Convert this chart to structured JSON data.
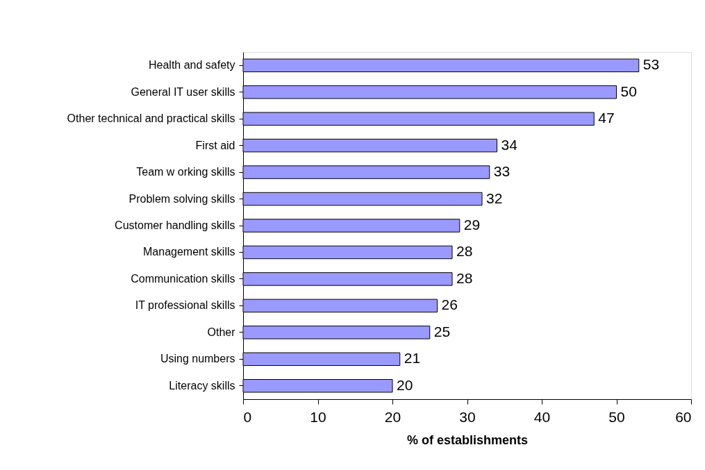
{
  "chart_data": {
    "type": "bar",
    "orientation": "horizontal",
    "xlabel": "% of establishments",
    "categories": [
      "Health and safety",
      "General IT user skills",
      "Other technical and practical skills",
      "First aid",
      "Team w orking skills",
      "Problem solving skills",
      "Customer handling skills",
      "Management skills",
      "Communication skills",
      "IT professional skills",
      "Other",
      "Using numbers",
      "Literacy skills"
    ],
    "values": [
      53,
      50,
      47,
      34,
      33,
      32,
      29,
      28,
      28,
      26,
      25,
      21,
      20
    ],
    "color": "#9999ff",
    "xlim": [
      0,
      60
    ],
    "xticks": [
      0,
      10,
      20,
      30,
      40,
      50,
      60
    ],
    "data_labels": true
  }
}
